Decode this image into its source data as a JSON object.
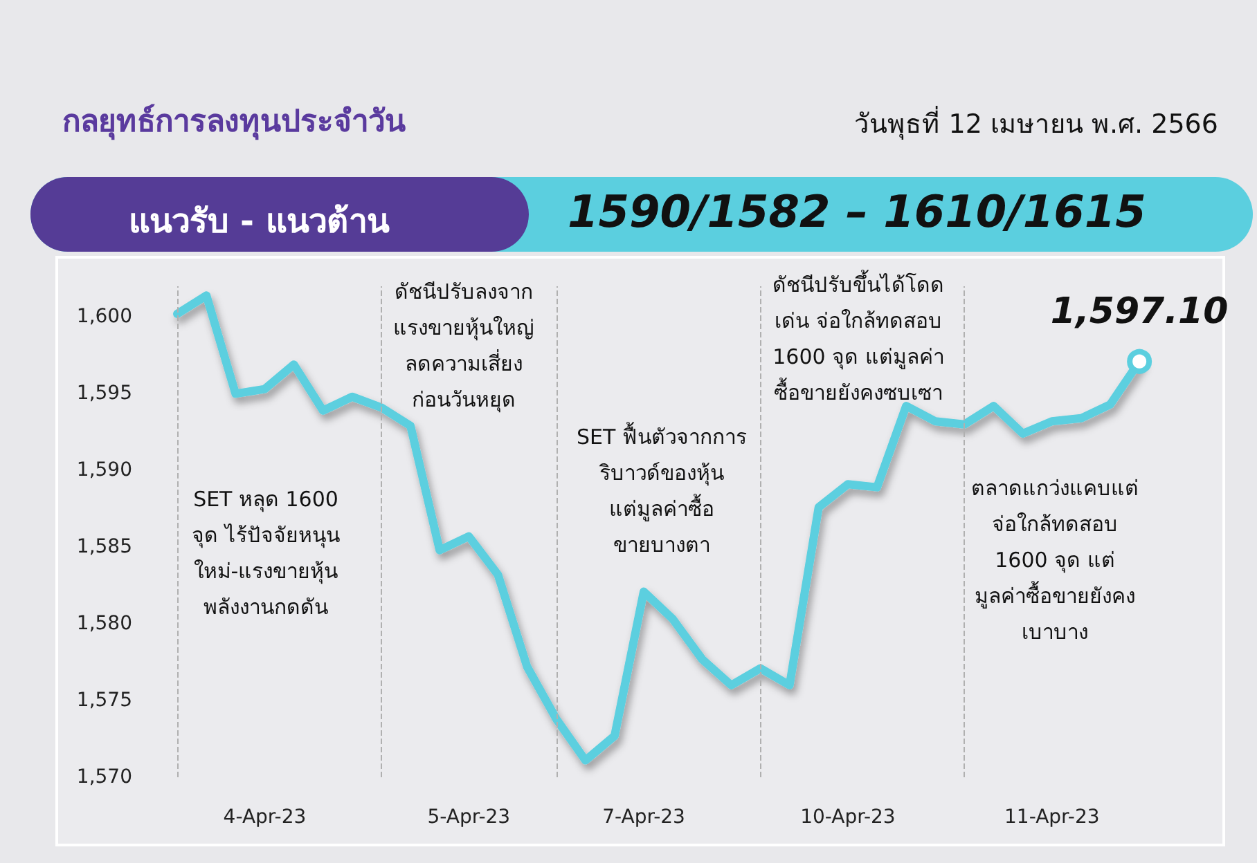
{
  "chart_data": {
    "type": "line",
    "title": "กลยุทธ์การลงทุนประจำวัน",
    "subtitle": "วันพุธที่ 12 เมษายน พ.ศ. 2566",
    "annotations": [
      "แนวรับ - แนวต้าน",
      "1590/1582 – 1610/1615",
      "SET หลุด 1600\nจุด ไร้ปัจจัยหนุน\nใหม่-แรงขายหุ้น\nพลังงานกดดัน",
      "ดัชนีปรับลงจาก\nแรงขายหุ้นใหญ่\nลดความเสี่ยง\nก่อนวันหยุด",
      "SET ฟื้นตัวจากการ\nริบาวด์ของหุ้น\nแต่มูลค่าซื้อ\nขายบางตา",
      "ดัชนีปรับขึ้นได้โดด\nเด่น จ่อใกล้ทดสอบ\n1600 จุด แต่มูลค่า\nซื้อขายยังคงซบเซา",
      "ตลาดแกว่งแคบแต่\nจ่อใกล้ทดสอบ\n1600 จุด แต่\nมูลค่าซื้อขายยังคง\nเบาบาง"
    ],
    "categories": [
      null,
      null,
      null,
      "4-Apr-23",
      null,
      null,
      null,
      null,
      null,
      null,
      "5-Apr-23",
      null,
      null,
      null,
      null,
      null,
      "7-Apr-23",
      null,
      null,
      null,
      null,
      null,
      null,
      "10-Apr-23",
      null,
      null,
      null,
      null,
      null,
      null,
      "11-Apr-23",
      null,
      null,
      null
    ],
    "ylim": [
      1570,
      1602
    ],
    "yticks": [
      {
        "value": 1570,
        "label": "1,570"
      },
      {
        "value": 1575,
        "label": "1,575"
      },
      {
        "value": 1580,
        "label": "1,580"
      },
      {
        "value": 1585,
        "label": "1,585"
      },
      {
        "value": 1590,
        "label": "1,590"
      },
      {
        "value": 1595,
        "label": "1,595"
      },
      {
        "value": 1600,
        "label": "1,600"
      }
    ],
    "series": [
      {
        "color": "#5bcfdf",
        "values": [
          1600.2,
          1601.4,
          1595.0,
          1595.3,
          1596.9,
          1593.9,
          1594.8,
          1594.1,
          1592.9,
          1584.8,
          1585.7,
          1583.2,
          1577.2,
          1573.8,
          1571.1,
          1572.7,
          1582.1,
          1580.3,
          1577.7,
          1576.0,
          1577.1,
          1576.0,
          1587.6,
          1589.1,
          1588.9,
          1594.2,
          1593.2,
          1593.0,
          1594.2,
          1592.4,
          1593.2,
          1593.4,
          1594.3,
          1597.1
        ],
        "value_labels": [
          null,
          null,
          null,
          null,
          null,
          null,
          null,
          null,
          null,
          null,
          null,
          null,
          null,
          null,
          null,
          null,
          null,
          null,
          null,
          null,
          null,
          null,
          null,
          null,
          null,
          null,
          null,
          null,
          null,
          null,
          null,
          null,
          null,
          "1,597.10"
        ]
      }
    ],
    "grid": "x",
    "marker": "none",
    "line_style": "solid"
  }
}
